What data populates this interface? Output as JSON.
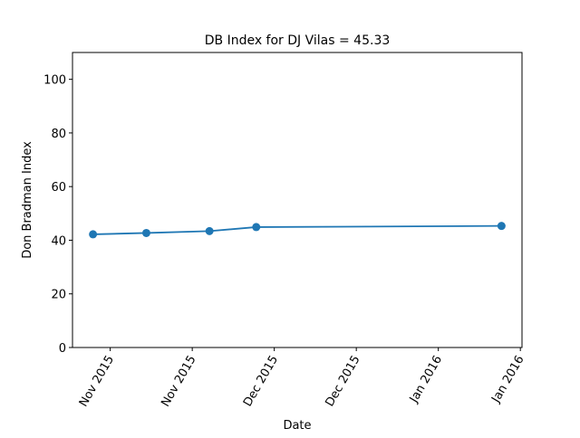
{
  "chart_data": {
    "type": "line",
    "title": "DB Index for DJ Vilas = 45.33",
    "x_label": "Date",
    "y_label": "Don Bradman Index",
    "x": [
      -0.21,
      0.44,
      1.21,
      1.78,
      4.77
    ],
    "series": [
      {
        "name": "DB Index",
        "color": "#1f77b4",
        "values": [
          42.2,
          42.7,
          43.4,
          44.9,
          45.33
        ]
      }
    ],
    "xlim": [
      -0.46,
      5.02
    ],
    "xticks": [
      {
        "value": 0,
        "label": "Nov 2015"
      },
      {
        "value": 1,
        "label": "Nov 2015"
      },
      {
        "value": 2,
        "label": "Dec 2015"
      },
      {
        "value": 3,
        "label": "Dec 2015"
      },
      {
        "value": 4,
        "label": "Jan 2016"
      },
      {
        "value": 5,
        "label": "Jan 2016"
      }
    ],
    "ylim": [
      0,
      110
    ],
    "yticks": [
      0,
      20,
      40,
      60,
      80,
      100
    ],
    "grid": false
  }
}
